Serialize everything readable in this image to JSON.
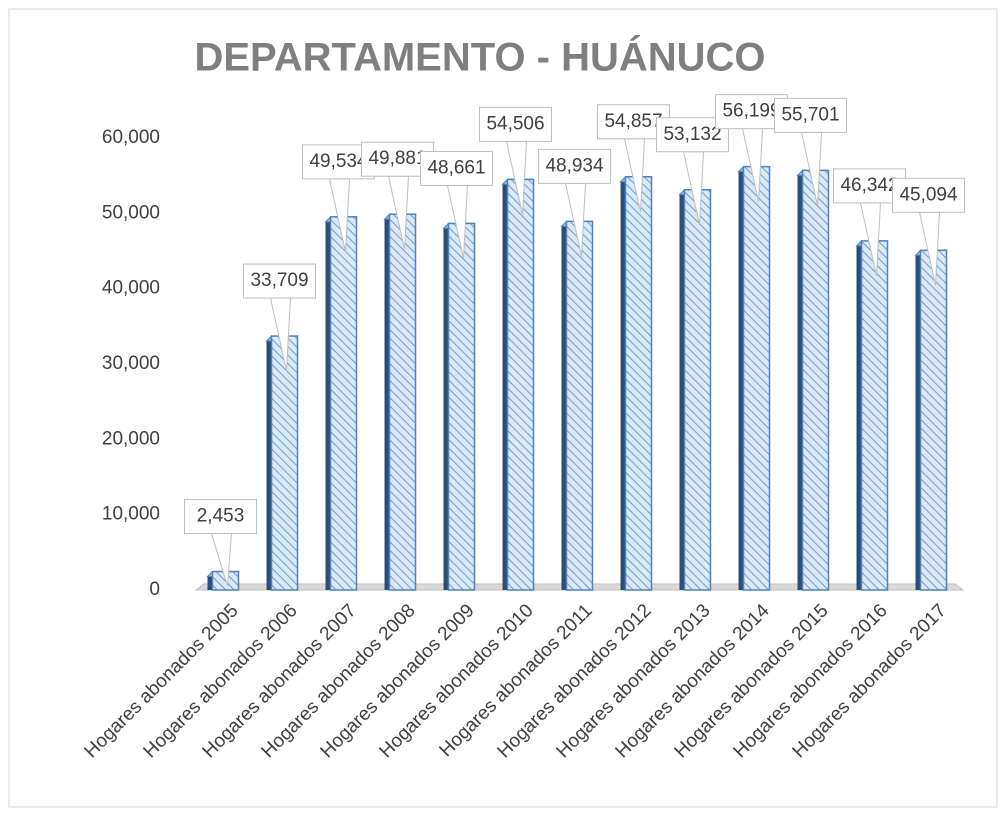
{
  "chart_data": {
    "type": "bar",
    "title": "DEPARTAMENTO - HUÁNUCO",
    "categories": [
      "Hogares abonados 2005",
      "Hogares abonados 2006",
      "Hogares abonados 2007",
      "Hogares abonados 2008",
      "Hogares abonados 2009",
      "Hogares abonados 2010",
      "Hogares abonados 2011",
      "Hogares abonados 2012",
      "Hogares abonados 2013",
      "Hogares abonados 2014",
      "Hogares abonados 2015",
      "Hogares abonados 2016",
      "Hogares abonados 2017"
    ],
    "values": [
      2453,
      33709,
      49534,
      49881,
      48661,
      54506,
      48934,
      54857,
      53132,
      56199,
      55701,
      46342,
      45094
    ],
    "value_labels": [
      "2,453",
      "33,709",
      "49,534",
      "49,881",
      "48,661",
      "54,506",
      "48,934",
      "54,857",
      "53,132",
      "56,199",
      "55,701",
      "46,342",
      "45,094"
    ],
    "color": "#4f81bd",
    "ylim": [
      0,
      60000
    ],
    "yticks": [
      0,
      {
        "value": 10000,
        "label": "10,000"
      },
      {
        "value": 20000,
        "label": "20,000"
      },
      {
        "value": 30000,
        "label": "30,000"
      },
      {
        "value": 40000,
        "label": "40,000"
      },
      {
        "value": 50000,
        "label": "50,000"
      },
      {
        "value": 60000,
        "label": "60,000"
      }
    ],
    "grid": false
  }
}
